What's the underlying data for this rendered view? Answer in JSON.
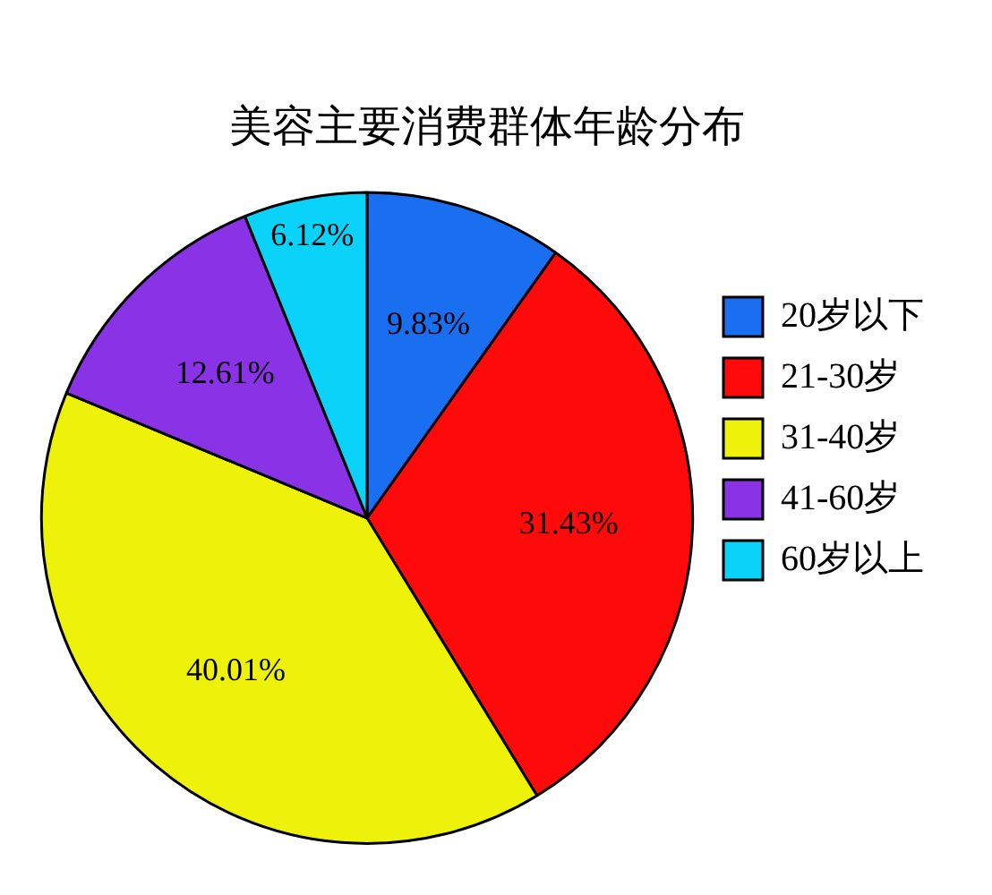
{
  "chart_data": {
    "type": "pie",
    "title": "美容主要消费群体年龄分布",
    "categories": [
      "20岁以下",
      "21-30岁",
      "31-40岁",
      "41-60岁",
      "60岁以上"
    ],
    "values": [
      9.83,
      31.43,
      40.01,
      12.61,
      6.12
    ],
    "value_labels": [
      "9.83%",
      "31.43%",
      "40.01%",
      "12.61%",
      "6.12%"
    ],
    "colors": [
      "#1a6ff0",
      "#ff0a0a",
      "#eef20a",
      "#8a32e6",
      "#0ad2f8"
    ],
    "legend": "right"
  }
}
